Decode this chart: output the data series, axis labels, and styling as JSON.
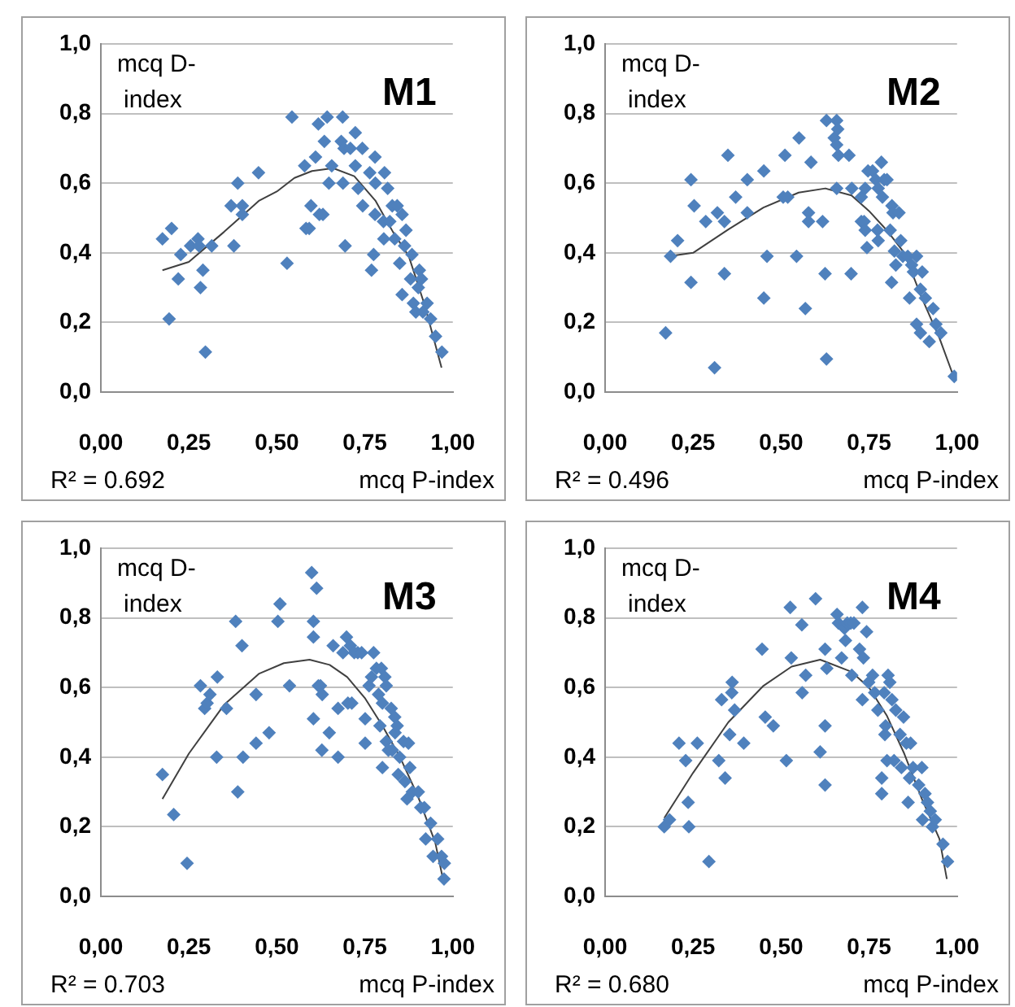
{
  "chart_data": [
    {
      "type": "scatter",
      "title": "M1",
      "xlabel": "mcq P-index",
      "ylabel": "mcq D-index",
      "annotations": [
        "R² = 0.692"
      ],
      "xlim": [
        0,
        1
      ],
      "ylim": [
        0,
        1
      ],
      "xticks": [
        {
          "value": 0,
          "label": "0,00"
        },
        {
          "value": 0.25,
          "label": "0,25"
        },
        {
          "value": 0.5,
          "label": "0,50"
        },
        {
          "value": 0.75,
          "label": "0,75"
        },
        {
          "value": 1,
          "label": "1,00"
        }
      ],
      "yticks": [
        {
          "value": 0,
          "label": "0,0"
        },
        {
          "value": 0.2,
          "label": "0,2"
        },
        {
          "value": 0.4,
          "label": "0,4"
        },
        {
          "value": 0.6,
          "label": "0,6"
        },
        {
          "value": 0.8,
          "label": "0,8"
        },
        {
          "value": 1,
          "label": "1,0"
        }
      ],
      "grid": "y",
      "marker": "diamond",
      "series": [
        {
          "color": "#4f81bd",
          "x": [
            0.175,
            0.194,
            0.201,
            0.22,
            0.227,
            0.255,
            0.276,
            0.279,
            0.283,
            0.29,
            0.297,
            0.315,
            0.37,
            0.378,
            0.389,
            0.402,
            0.402,
            0.448,
            0.529,
            0.543,
            0.579,
            0.583,
            0.592,
            0.597,
            0.61,
            0.618,
            0.621,
            0.631,
            0.635,
            0.643,
            0.648,
            0.656,
            0.683,
            0.687,
            0.688,
            0.694,
            0.691,
            0.709,
            0.723,
            0.723,
            0.731,
            0.743,
            0.744,
            0.764,
            0.769,
            0.775,
            0.779,
            0.779,
            0.78,
            0.803,
            0.804,
            0.806,
            0.815,
            0.821,
            0.828,
            0.835,
            0.842,
            0.849,
            0.856,
            0.856,
            0.863,
            0.867,
            0.88,
            0.884,
            0.888,
            0.895,
            0.902,
            0.905,
            0.911,
            0.915,
            0.927,
            0.937,
            0.951,
            0.969
          ],
          "values": [
            0.44,
            0.21,
            0.47,
            0.325,
            0.395,
            0.42,
            0.44,
            0.42,
            0.3,
            0.35,
            0.115,
            0.42,
            0.535,
            0.42,
            0.6,
            0.535,
            0.51,
            0.63,
            0.37,
            0.79,
            0.65,
            0.47,
            0.47,
            0.535,
            0.675,
            0.77,
            0.51,
            0.51,
            0.72,
            0.79,
            0.6,
            0.65,
            0.72,
            0.79,
            0.6,
            0.42,
            0.7,
            0.7,
            0.745,
            0.65,
            0.585,
            0.7,
            0.535,
            0.63,
            0.35,
            0.395,
            0.675,
            0.51,
            0.6,
            0.49,
            0.44,
            0.63,
            0.585,
            0.49,
            0.535,
            0.44,
            0.535,
            0.37,
            0.51,
            0.28,
            0.42,
            0.465,
            0.325,
            0.395,
            0.255,
            0.23,
            0.3,
            0.35,
            0.325,
            0.23,
            0.255,
            0.21,
            0.16,
            0.115
          ]
        },
        {
          "type": "line",
          "marker": "none",
          "color": "#404040",
          "x": [
            0.175,
            0.25,
            0.35,
            0.45,
            0.5,
            0.55,
            0.6,
            0.66,
            0.72,
            0.78,
            0.83,
            0.875,
            0.92,
            0.968
          ],
          "values": [
            0.35,
            0.374,
            0.46,
            0.55,
            0.576,
            0.615,
            0.635,
            0.643,
            0.62,
            0.55,
            0.46,
            0.39,
            0.25,
            0.07
          ]
        }
      ]
    },
    {
      "type": "scatter",
      "title": "M2",
      "xlabel": "mcq P-index",
      "ylabel": "mcq D-index",
      "annotations": [
        "R² = 0.496"
      ],
      "xlim": [
        0,
        1
      ],
      "ylim": [
        0,
        1
      ],
      "xticks": [
        {
          "value": 0,
          "label": "0,00"
        },
        {
          "value": 0.25,
          "label": "0,25"
        },
        {
          "value": 0.5,
          "label": "0,50"
        },
        {
          "value": 0.75,
          "label": "0,75"
        },
        {
          "value": 1,
          "label": "1,00"
        }
      ],
      "yticks": [
        {
          "value": 0,
          "label": "0,0"
        },
        {
          "value": 0.2,
          "label": "0,2"
        },
        {
          "value": 0.4,
          "label": "0,4"
        },
        {
          "value": 0.6,
          "label": "0,6"
        },
        {
          "value": 0.8,
          "label": "0,8"
        },
        {
          "value": 1,
          "label": "1,0"
        }
      ],
      "grid": "y",
      "marker": "diamond",
      "series": [
        {
          "color": "#4f81bd",
          "x": [
            0.172,
            0.186,
            0.206,
            0.244,
            0.244,
            0.253,
            0.286,
            0.311,
            0.319,
            0.339,
            0.339,
            0.349,
            0.371,
            0.404,
            0.404,
            0.451,
            0.451,
            0.46,
            0.506,
            0.511,
            0.519,
            0.544,
            0.551,
            0.569,
            0.578,
            0.578,
            0.585,
            0.618,
            0.625,
            0.629,
            0.629,
            0.658,
            0.651,
            0.661,
            0.658,
            0.663,
            0.658,
            0.693,
            0.699,
            0.701,
            0.728,
            0.728,
            0.736,
            0.739,
            0.739,
            0.744,
            0.747,
            0.76,
            0.769,
            0.774,
            0.776,
            0.776,
            0.785,
            0.788,
            0.793,
            0.801,
            0.81,
            0.814,
            0.815,
            0.818,
            0.822,
            0.826,
            0.835,
            0.84,
            0.846,
            0.86,
            0.865,
            0.871,
            0.876,
            0.885,
            0.885,
            0.896,
            0.896,
            0.901,
            0.91,
            0.921,
            0.932,
            0.94,
            0.954,
            0.992
          ],
          "values": [
            0.17,
            0.39,
            0.435,
            0.61,
            0.315,
            0.535,
            0.49,
            0.07,
            0.515,
            0.49,
            0.34,
            0.68,
            0.56,
            0.61,
            0.515,
            0.635,
            0.27,
            0.39,
            0.56,
            0.68,
            0.56,
            0.39,
            0.73,
            0.24,
            0.515,
            0.49,
            0.66,
            0.49,
            0.34,
            0.78,
            0.095,
            0.78,
            0.73,
            0.755,
            0.71,
            0.68,
            0.585,
            0.68,
            0.34,
            0.585,
            0.56,
            0.49,
            0.49,
            0.465,
            0.585,
            0.415,
            0.635,
            0.635,
            0.61,
            0.465,
            0.435,
            0.585,
            0.66,
            0.56,
            0.61,
            0.61,
            0.465,
            0.315,
            0.535,
            0.515,
            0.405,
            0.365,
            0.515,
            0.435,
            0.39,
            0.39,
            0.27,
            0.365,
            0.345,
            0.39,
            0.195,
            0.17,
            0.295,
            0.345,
            0.27,
            0.145,
            0.24,
            0.195,
            0.17,
            0.045
          ]
        },
        {
          "type": "line",
          "marker": "none",
          "color": "#404040",
          "x": [
            0.182,
            0.25,
            0.35,
            0.45,
            0.55,
            0.626,
            0.7,
            0.75,
            0.8,
            0.85,
            0.9,
            0.95,
            0.99
          ],
          "values": [
            0.39,
            0.4,
            0.467,
            0.53,
            0.573,
            0.585,
            0.565,
            0.52,
            0.465,
            0.4,
            0.27,
            0.155,
            0.045
          ]
        }
      ]
    },
    {
      "type": "scatter",
      "title": "M3",
      "xlabel": "mcq P-index",
      "ylabel": "mcq D-index",
      "annotations": [
        "R² = 0.703"
      ],
      "xlim": [
        0,
        1
      ],
      "ylim": [
        0,
        1
      ],
      "xticks": [
        {
          "value": 0,
          "label": "0,00"
        },
        {
          "value": 0.25,
          "label": "0,25"
        },
        {
          "value": 0.5,
          "label": "0,50"
        },
        {
          "value": 0.75,
          "label": "0,75"
        },
        {
          "value": 1,
          "label": "1,00"
        }
      ],
      "yticks": [
        {
          "value": 0,
          "label": "0,0"
        },
        {
          "value": 0.2,
          "label": "0,2"
        },
        {
          "value": 0.4,
          "label": "0,4"
        },
        {
          "value": 0.6,
          "label": "0,6"
        },
        {
          "value": 0.8,
          "label": "0,8"
        },
        {
          "value": 1,
          "label": "1,0"
        }
      ],
      "grid": "y",
      "marker": "diamond",
      "series": [
        {
          "color": "#4f81bd",
          "x": [
            0.175,
            0.207,
            0.245,
            0.283,
            0.295,
            0.302,
            0.31,
            0.329,
            0.331,
            0.357,
            0.383,
            0.389,
            0.401,
            0.404,
            0.441,
            0.441,
            0.478,
            0.503,
            0.509,
            0.536,
            0.599,
            0.604,
            0.604,
            0.604,
            0.613,
            0.618,
            0.624,
            0.629,
            0.628,
            0.649,
            0.66,
            0.674,
            0.674,
            0.688,
            0.698,
            0.702,
            0.709,
            0.713,
            0.72,
            0.73,
            0.741,
            0.751,
            0.751,
            0.762,
            0.769,
            0.775,
            0.783,
            0.789,
            0.793,
            0.797,
            0.8,
            0.8,
            0.807,
            0.811,
            0.811,
            0.817,
            0.825,
            0.828,
            0.835,
            0.836,
            0.842,
            0.845,
            0.849,
            0.86,
            0.864,
            0.87,
            0.874,
            0.878,
            0.885,
            0.902,
            0.909,
            0.919,
            0.923,
            0.937,
            0.944,
            0.957,
            0.968,
            0.976,
            0.975
          ],
          "values": [
            0.35,
            0.235,
            0.095,
            0.605,
            0.54,
            0.555,
            0.58,
            0.4,
            0.63,
            0.54,
            0.79,
            0.3,
            0.72,
            0.4,
            0.58,
            0.44,
            0.47,
            0.79,
            0.84,
            0.605,
            0.93,
            0.79,
            0.745,
            0.51,
            0.885,
            0.605,
            0.605,
            0.58,
            0.42,
            0.47,
            0.72,
            0.54,
            0.4,
            0.7,
            0.745,
            0.555,
            0.72,
            0.555,
            0.7,
            0.7,
            0.7,
            0.51,
            0.44,
            0.605,
            0.63,
            0.7,
            0.655,
            0.58,
            0.49,
            0.655,
            0.555,
            0.37,
            0.63,
            0.605,
            0.445,
            0.42,
            0.54,
            0.42,
            0.515,
            0.47,
            0.49,
            0.35,
            0.4,
            0.445,
            0.33,
            0.28,
            0.44,
            0.37,
            0.3,
            0.3,
            0.255,
            0.255,
            0.165,
            0.21,
            0.115,
            0.165,
            0.115,
            0.095,
            0.05
          ]
        },
        {
          "type": "line",
          "marker": "none",
          "color": "#404040",
          "x": [
            0.175,
            0.25,
            0.35,
            0.45,
            0.52,
            0.593,
            0.65,
            0.7,
            0.75,
            0.8,
            0.85,
            0.9,
            0.95,
            0.971
          ],
          "values": [
            0.28,
            0.41,
            0.55,
            0.64,
            0.67,
            0.68,
            0.665,
            0.63,
            0.57,
            0.49,
            0.4,
            0.29,
            0.155,
            0.055
          ]
        }
      ]
    },
    {
      "type": "scatter",
      "title": "M4",
      "xlabel": "mcq P-index",
      "ylabel": "mcq D-index",
      "annotations": [
        "R² = 0.680"
      ],
      "xlim": [
        0,
        1
      ],
      "ylim": [
        0,
        1
      ],
      "xticks": [
        {
          "value": 0,
          "label": "0,00"
        },
        {
          "value": 0.25,
          "label": "0,25"
        },
        {
          "value": 0.5,
          "label": "0,50"
        },
        {
          "value": 0.75,
          "label": "0,75"
        },
        {
          "value": 1,
          "label": "1,00"
        }
      ],
      "yticks": [
        {
          "value": 0,
          "label": "0,0"
        },
        {
          "value": 0.2,
          "label": "0,2"
        },
        {
          "value": 0.4,
          "label": "0,4"
        },
        {
          "value": 0.6,
          "label": "0,6"
        },
        {
          "value": 0.8,
          "label": "0,8"
        },
        {
          "value": 1,
          "label": "1,0"
        }
      ],
      "grid": "y",
      "marker": "diamond",
      "series": [
        {
          "color": "#4f81bd",
          "x": [
            0.168,
            0.183,
            0.21,
            0.229,
            0.236,
            0.238,
            0.262,
            0.295,
            0.323,
            0.331,
            0.341,
            0.354,
            0.36,
            0.361,
            0.368,
            0.394,
            0.446,
            0.455,
            0.478,
            0.515,
            0.526,
            0.529,
            0.559,
            0.56,
            0.57,
            0.598,
            0.611,
            0.625,
            0.625,
            0.625,
            0.63,
            0.659,
            0.663,
            0.672,
            0.68,
            0.683,
            0.688,
            0.698,
            0.701,
            0.707,
            0.723,
            0.731,
            0.734,
            0.731,
            0.743,
            0.749,
            0.76,
            0.766,
            0.775,
            0.786,
            0.786,
            0.793,
            0.795,
            0.797,
            0.801,
            0.804,
            0.809,
            0.815,
            0.821,
            0.826,
            0.838,
            0.842,
            0.848,
            0.856,
            0.861,
            0.865,
            0.868,
            0.875,
            0.891,
            0.9,
            0.902,
            0.909,
            0.916,
            0.924,
            0.93,
            0.938,
            0.96,
            0.973
          ],
          "values": [
            0.2,
            0.22,
            0.44,
            0.39,
            0.27,
            0.2,
            0.44,
            0.1,
            0.39,
            0.565,
            0.34,
            0.465,
            0.585,
            0.615,
            0.535,
            0.44,
            0.71,
            0.515,
            0.49,
            0.39,
            0.83,
            0.685,
            0.78,
            0.585,
            0.635,
            0.855,
            0.415,
            0.71,
            0.49,
            0.32,
            0.655,
            0.81,
            0.785,
            0.685,
            0.77,
            0.735,
            0.785,
            0.785,
            0.635,
            0.785,
            0.71,
            0.83,
            0.685,
            0.565,
            0.76,
            0.615,
            0.635,
            0.585,
            0.535,
            0.34,
            0.295,
            0.585,
            0.465,
            0.49,
            0.39,
            0.635,
            0.615,
            0.565,
            0.39,
            0.535,
            0.465,
            0.37,
            0.515,
            0.44,
            0.27,
            0.34,
            0.44,
            0.37,
            0.32,
            0.37,
            0.22,
            0.295,
            0.27,
            0.245,
            0.2,
            0.22,
            0.15,
            0.1
          ]
        },
        {
          "type": "line",
          "marker": "none",
          "color": "#404040",
          "x": [
            0.168,
            0.25,
            0.35,
            0.45,
            0.53,
            0.611,
            0.7,
            0.75,
            0.8,
            0.85,
            0.9,
            0.95,
            0.971
          ],
          "values": [
            0.225,
            0.355,
            0.5,
            0.605,
            0.66,
            0.68,
            0.645,
            0.6,
            0.52,
            0.41,
            0.28,
            0.165,
            0.05
          ]
        }
      ]
    }
  ]
}
